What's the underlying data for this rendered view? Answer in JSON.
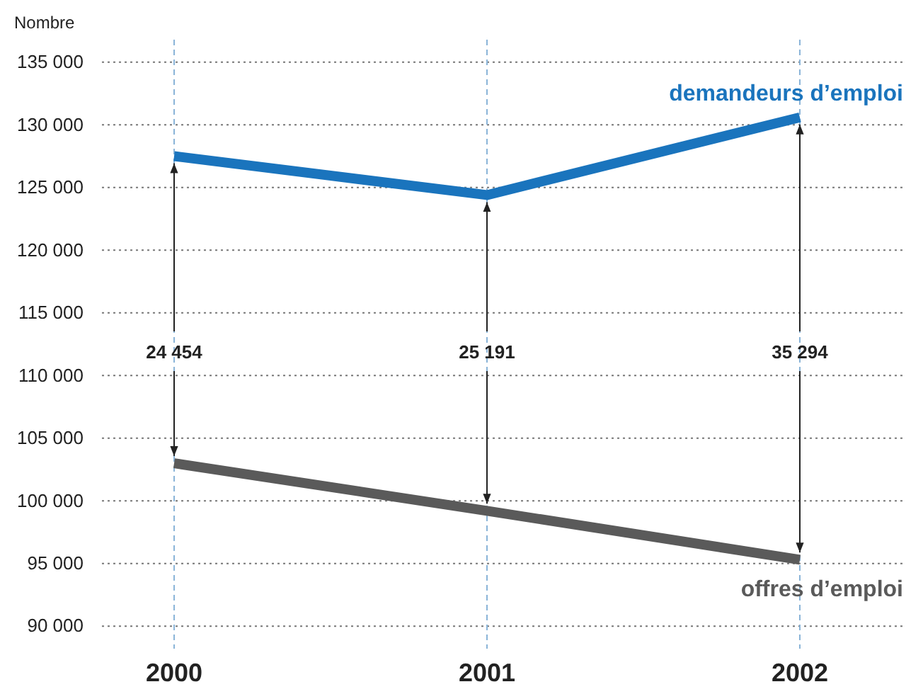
{
  "chart_data": {
    "type": "line",
    "ylabel": "Nombre",
    "categories": [
      "2000",
      "2001",
      "2002"
    ],
    "series": [
      {
        "name": "demandeurs d’emploi",
        "color": "#1a74bd",
        "values": [
          127500,
          124400,
          130600
        ]
      },
      {
        "name": "offres d’emploi",
        "color": "#5a5a5a",
        "values": [
          103000,
          99200,
          95300
        ]
      }
    ],
    "ylim": [
      88200,
      136800
    ],
    "yticks": [
      {
        "value": 90000,
        "label": "90 000"
      },
      {
        "value": 95000,
        "label": "95 000"
      },
      {
        "value": 100000,
        "label": "100 000"
      },
      {
        "value": 105000,
        "label": "105 000"
      },
      {
        "value": 110000,
        "label": "110 000"
      },
      {
        "value": 115000,
        "label": "115 000"
      },
      {
        "value": 120000,
        "label": "120 000"
      },
      {
        "value": 125000,
        "label": "125 000"
      },
      {
        "value": 130000,
        "label": "130 000"
      },
      {
        "value": 135000,
        "label": "135 000"
      }
    ],
    "grid": true,
    "marker": "none",
    "line_style": "solid",
    "annotations": [
      {
        "text": "24 454",
        "x": "2000",
        "y": 127500
      },
      {
        "text": "25 191",
        "x": "2001",
        "y": 124400
      },
      {
        "text": "35 294",
        "x": "2002",
        "y": 130600
      }
    ]
  }
}
